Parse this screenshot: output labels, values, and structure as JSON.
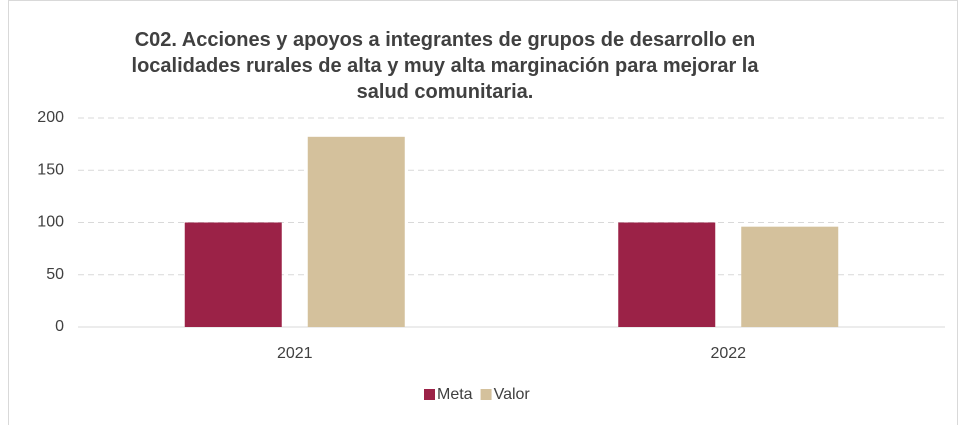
{
  "chart_data": {
    "type": "bar",
    "title": "C02. Acciones y apoyos a integrantes de grupos de desarrollo en localidades rurales de alta y muy alta marginación para mejorar la salud comunitaria.",
    "categories": [
      "2021",
      "2022"
    ],
    "series": [
      {
        "name": "Meta",
        "color": "#9b2247",
        "values": [
          100,
          100
        ]
      },
      {
        "name": "Valor",
        "color": "#d4c19c",
        "values": [
          182,
          96
        ]
      }
    ],
    "ylim": [
      0,
      200
    ],
    "yticks": [
      0,
      50,
      100,
      150,
      200
    ],
    "grid": true,
    "legend": "bottom"
  }
}
